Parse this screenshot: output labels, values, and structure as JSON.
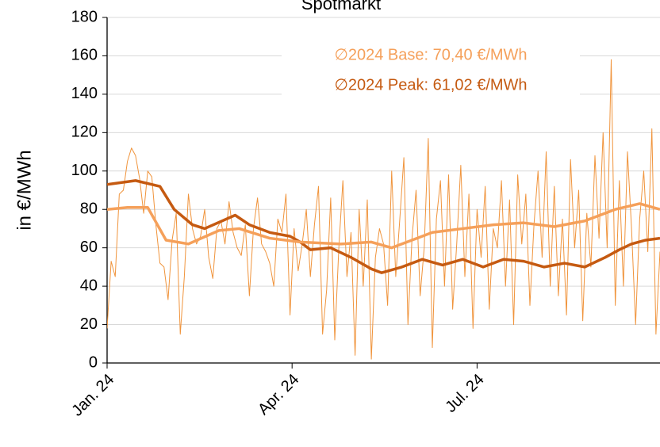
{
  "chart_data": {
    "type": "line",
    "title": "Spotmarkt",
    "y_label": "in €/MWh",
    "annotations": [
      "∅2024 Base: 70,40 €/MWh",
      "∅2024 Peak: 61,02 €/MWh"
    ],
    "annotation_colors": [
      "#f5a05a",
      "#c55a11"
    ],
    "xlim": [
      0,
      272
    ],
    "xticks": [
      {
        "value": 0,
        "label": "Jan. 24"
      },
      {
        "value": 91,
        "label": "Apr. 24"
      },
      {
        "value": 182,
        "label": "Jul. 24"
      }
    ],
    "ylim": [
      0,
      180
    ],
    "yticks": [
      0,
      20,
      40,
      60,
      80,
      100,
      120,
      140,
      160,
      180
    ],
    "grid": true,
    "series": [
      {
        "color": "#f0943c",
        "width": 1,
        "x": [
          0,
          2,
          4,
          6,
          8,
          10,
          12,
          14,
          16,
          18,
          20,
          22,
          24,
          26,
          28,
          30,
          32,
          34,
          36,
          38,
          40,
          42,
          44,
          46,
          48,
          50,
          52,
          54,
          56,
          58,
          60,
          62,
          64,
          66,
          68,
          70,
          72,
          74,
          76,
          78,
          80,
          82,
          84,
          86,
          88,
          90,
          92,
          94,
          96,
          98,
          100,
          102,
          104,
          106,
          108,
          110,
          112,
          114,
          116,
          118,
          120,
          122,
          124,
          126,
          128,
          130,
          132,
          134,
          136,
          138,
          140,
          142,
          144,
          146,
          148,
          150,
          152,
          154,
          156,
          158,
          160,
          162,
          164,
          166,
          168,
          170,
          172,
          174,
          176,
          178,
          180,
          182,
          184,
          186,
          188,
          190,
          192,
          194,
          196,
          198,
          200,
          202,
          204,
          206,
          208,
          210,
          212,
          214,
          216,
          218,
          220,
          222,
          224,
          226,
          228,
          230,
          232,
          234,
          236,
          238,
          240,
          242,
          244,
          246,
          248,
          250,
          252,
          254,
          256,
          258,
          260,
          262,
          264,
          266,
          268,
          270,
          272
        ],
        "values": [
          18,
          53,
          45,
          88,
          90,
          105,
          112,
          108,
          96,
          78,
          100,
          97,
          72,
          52,
          50,
          33,
          64,
          78,
          15,
          45,
          88,
          70,
          62,
          66,
          80,
          55,
          44,
          70,
          74,
          62,
          84,
          68,
          60,
          56,
          72,
          35,
          70,
          86,
          62,
          58,
          52,
          40,
          75,
          68,
          88,
          25,
          70,
          48,
          62,
          80,
          45,
          72,
          92,
          15,
          38,
          86,
          12,
          60,
          95,
          45,
          68,
          4,
          80,
          40,
          85,
          2,
          55,
          70,
          62,
          30,
          100,
          45,
          75,
          107,
          20,
          65,
          90,
          35,
          60,
          117,
          8,
          75,
          95,
          40,
          98,
          28,
          62,
          103,
          45,
          88,
          18,
          80,
          55,
          92,
          28,
          70,
          60,
          95,
          40,
          85,
          20,
          98,
          62,
          88,
          30,
          72,
          100,
          55,
          110,
          40,
          92,
          35,
          75,
          25,
          106,
          60,
          90,
          22,
          78,
          50,
          108,
          65,
          120,
          60,
          158,
          30,
          95,
          40,
          110,
          70,
          20,
          75,
          100,
          58,
          122,
          15,
          58
        ]
      },
      {
        "color": "#c55a11",
        "width": 3.5,
        "x": [
          0,
          14,
          26,
          33,
          42,
          48,
          63,
          70,
          80,
          90,
          95,
          100,
          110,
          120,
          130,
          135,
          145,
          155,
          165,
          175,
          185,
          195,
          205,
          215,
          225,
          235,
          245,
          252,
          258,
          265,
          272
        ],
        "values": [
          93,
          95,
          92,
          80,
          72,
          70,
          77,
          72,
          68,
          66,
          63,
          59,
          60,
          55,
          49,
          47,
          50,
          54,
          51,
          54,
          50,
          54,
          53,
          50,
          52,
          50,
          55,
          59,
          62,
          64,
          65
        ]
      },
      {
        "color": "#f5a05a",
        "width": 3.5,
        "x": [
          0,
          10,
          20,
          29,
          40,
          55,
          65,
          80,
          95,
          115,
          130,
          140,
          150,
          160,
          175,
          190,
          205,
          220,
          235,
          250,
          262,
          272
        ],
        "values": [
          80,
          81,
          81,
          64,
          62,
          69,
          70,
          65,
          63,
          62,
          63,
          60,
          64,
          68,
          70,
          72,
          73,
          71,
          74,
          80,
          83,
          80
        ]
      }
    ]
  }
}
